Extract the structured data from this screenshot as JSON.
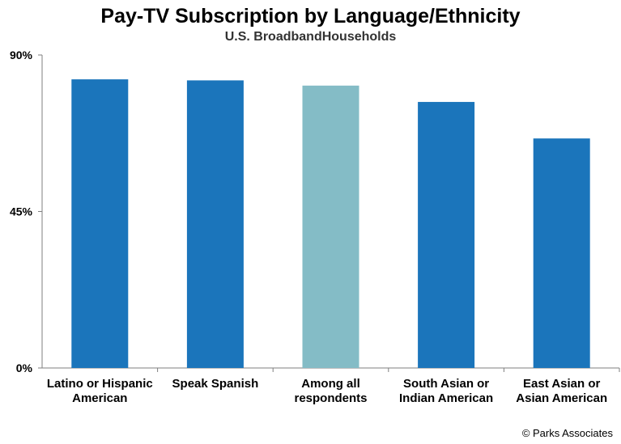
{
  "chart_data": {
    "type": "bar",
    "title": "Pay-TV Subscription by Language/Ethnicity",
    "subtitle": "U.S. BroadbandHouseholds",
    "categories": [
      [
        "Latino or Hispanic",
        "American"
      ],
      [
        "Speak Spanish"
      ],
      [
        "Among all",
        "respondents"
      ],
      [
        "South Asian or",
        "Indian American"
      ],
      [
        "East Asian or",
        "Asian American"
      ]
    ],
    "values": [
      83,
      82.7,
      81.2,
      76.5,
      66
    ],
    "bar_colors": [
      "#1b75bb",
      "#1b75bb",
      "#84bcc6",
      "#1b75bb",
      "#1b75bb"
    ],
    "ylim": [
      0,
      90
    ],
    "yticks": [
      "0%",
      "45%",
      "90%"
    ],
    "ytick_values": [
      0,
      45,
      90
    ],
    "grid": false
  },
  "footer": {
    "copyright": "© Parks Associates"
  }
}
